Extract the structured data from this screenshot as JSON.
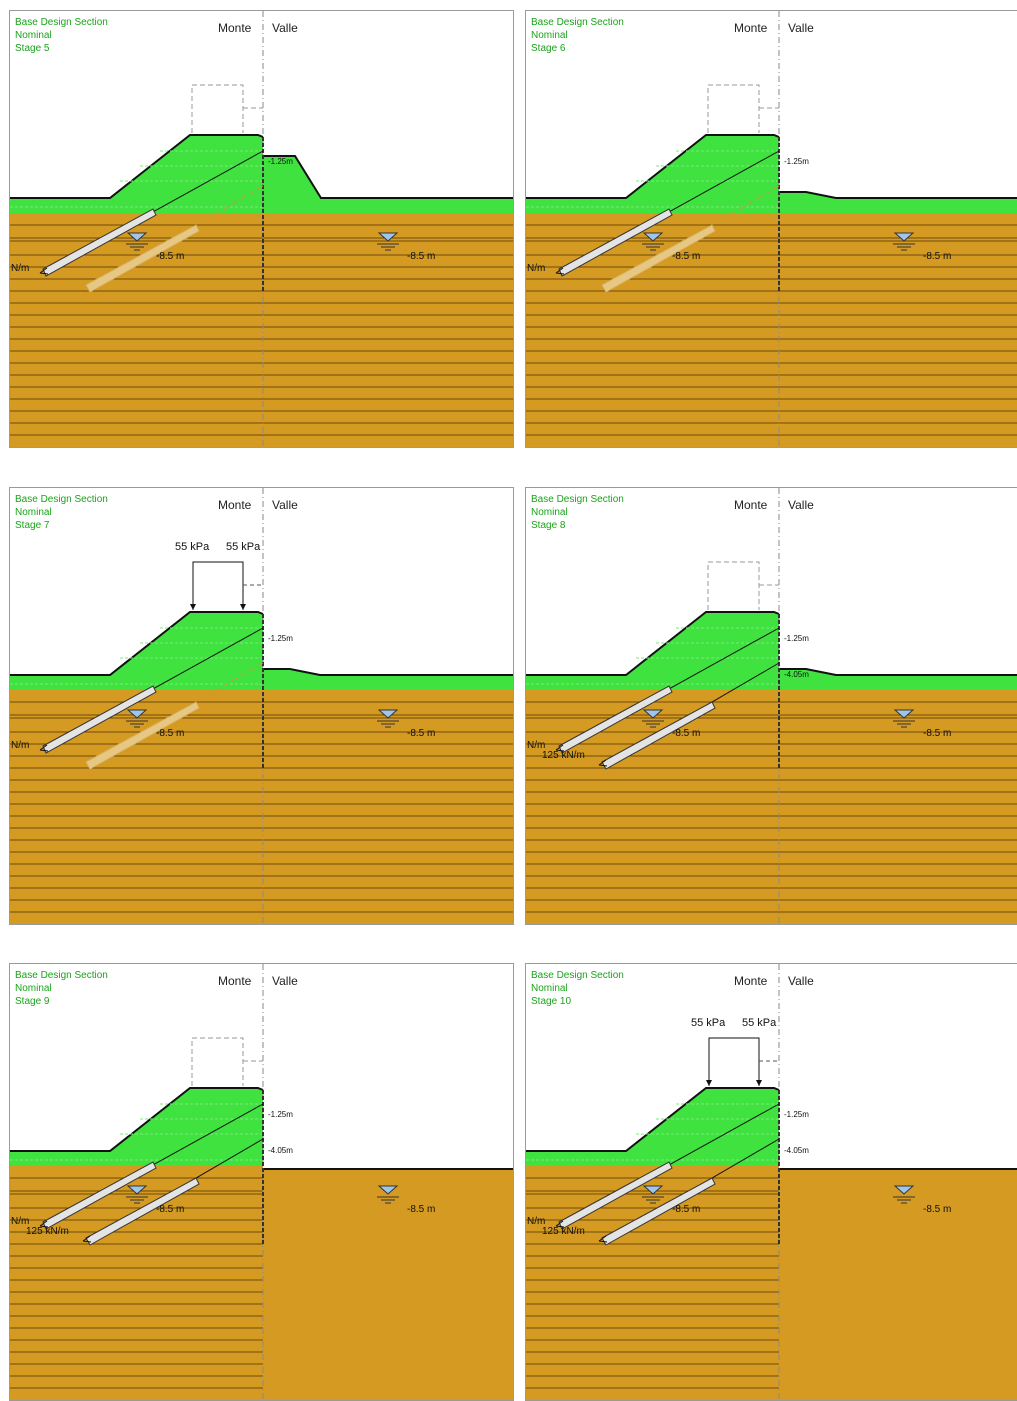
{
  "colors": {
    "fill": "#3fe23f",
    "soil": "#d49a22",
    "soil_line": "#6e4a0a",
    "header_text": "#1aa31a"
  },
  "panels": [
    {
      "title": "Base Design Section",
      "subtitle": "Nominal",
      "stage": "Stage 5",
      "monte": "Monte",
      "valle": "Valle",
      "elev1": "-1.25m",
      "elev2": "",
      "wt_left": "-8.5 m",
      "wt_right": "-8.5 m",
      "load_left": "",
      "load_right": "",
      "anchor1": "N/m",
      "anchor2": ""
    },
    {
      "title": "Base Design Section",
      "subtitle": "Nominal",
      "stage": "Stage 6",
      "monte": "Monte",
      "valle": "Valle",
      "elev1": "-1.25m",
      "elev2": "",
      "wt_left": "-8.5 m",
      "wt_right": "-8.5 m",
      "load_left": "",
      "load_right": "",
      "anchor1": "N/m",
      "anchor2": ""
    },
    {
      "title": "Base Design Section",
      "subtitle": "Nominal",
      "stage": "Stage 7",
      "monte": "Monte",
      "valle": "Valle",
      "elev1": "-1.25m",
      "elev2": "",
      "wt_left": "-8.5 m",
      "wt_right": "-8.5 m",
      "load_left": "55 kPa",
      "load_right": "55 kPa",
      "anchor1": "N/m",
      "anchor2": ""
    },
    {
      "title": "Base Design Section",
      "subtitle": "Nominal",
      "stage": "Stage 8",
      "monte": "Monte",
      "valle": "Valle",
      "elev1": "-1.25m",
      "elev2": "-4.05m",
      "wt_left": "-8.5 m",
      "wt_right": "-8.5 m",
      "load_left": "",
      "load_right": "",
      "anchor1": "N/m",
      "anchor2": "125 kN/m"
    },
    {
      "title": "Base Design Section",
      "subtitle": "Nominal",
      "stage": "Stage 9",
      "monte": "Monte",
      "valle": "Valle",
      "elev1": "-1.25m",
      "elev2": "-4.05m",
      "wt_left": "-8.5 m",
      "wt_right": "-8.5 m",
      "load_left": "",
      "load_right": "",
      "anchor1": "N/m",
      "anchor2": "125 kN/m"
    },
    {
      "title": "Base Design Section",
      "subtitle": "Nominal",
      "stage": "Stage 10",
      "monte": "Monte",
      "valle": "Valle",
      "elev1": "-1.25m",
      "elev2": "-4.05m",
      "wt_left": "-8.5 m",
      "wt_right": "-8.5 m",
      "load_left": "55 kPa",
      "load_right": "55 kPa",
      "anchor1": "N/m",
      "anchor2": "125 kN/m"
    }
  ]
}
